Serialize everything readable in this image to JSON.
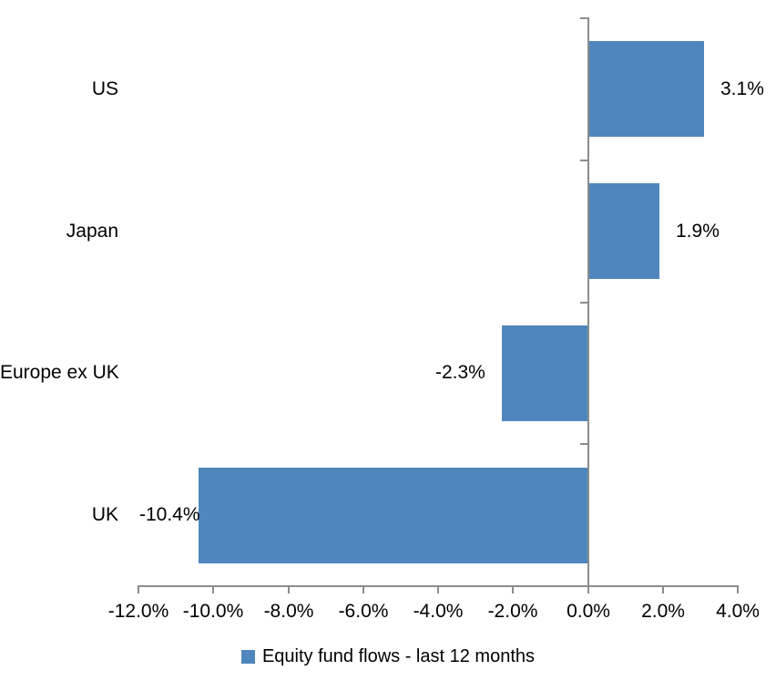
{
  "chart_data": {
    "type": "bar",
    "orientation": "horizontal",
    "title": "",
    "categories": [
      "US",
      "Japan",
      "Europe ex UK",
      "UK"
    ],
    "values": [
      3.1,
      1.9,
      -2.3,
      -10.4
    ],
    "data_labels": [
      "3.1%",
      "1.9%",
      "-2.3%",
      "-10.4%"
    ],
    "series_name": "Equity fund flows - last 12 months",
    "xlim": [
      -12,
      4
    ],
    "xtick_values": [
      -12,
      -10,
      -8,
      -6,
      -4,
      -2,
      0,
      2,
      4
    ],
    "xtick_labels": [
      "-12.0%",
      "-10.0%",
      "-8.0%",
      "-6.0%",
      "-4.0%",
      "-2.0%",
      "0.0%",
      "2.0%",
      "4.0%"
    ],
    "grid": false,
    "legend_position": "bottom",
    "colors": {
      "bar": "#4f86bd",
      "axis": "#8c8c8c",
      "text": "#000000",
      "background": "#ffffff"
    }
  },
  "legend": {
    "label": "Equity fund flows - last 12 months"
  }
}
